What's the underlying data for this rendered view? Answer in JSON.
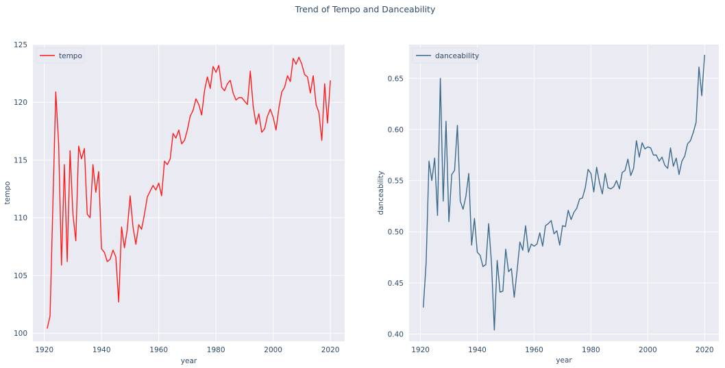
{
  "figure": {
    "title": "Trend of Tempo and Danceability"
  },
  "chart_data": [
    {
      "type": "line",
      "title": "",
      "xlabel": "year",
      "ylabel": "tempo",
      "xlim": [
        1916,
        2025
      ],
      "ylim": [
        99.3,
        125
      ],
      "xticks": [
        1920,
        1940,
        1960,
        1980,
        2000,
        2020
      ],
      "yticks": [
        100,
        105,
        110,
        115,
        120,
        125
      ],
      "grid": true,
      "legend": "top-left",
      "series": [
        {
          "name": "tempo",
          "color": "#ff1a1a",
          "x": [
            1921,
            1922,
            1923,
            1924,
            1925,
            1926,
            1927,
            1928,
            1929,
            1930,
            1931,
            1932,
            1933,
            1934,
            1935,
            1936,
            1937,
            1938,
            1939,
            1940,
            1941,
            1942,
            1943,
            1944,
            1945,
            1946,
            1947,
            1948,
            1949,
            1950,
            1951,
            1952,
            1953,
            1954,
            1955,
            1956,
            1957,
            1958,
            1959,
            1960,
            1961,
            1962,
            1963,
            1964,
            1965,
            1966,
            1967,
            1968,
            1969,
            1970,
            1971,
            1972,
            1973,
            1974,
            1975,
            1976,
            1977,
            1978,
            1979,
            1980,
            1981,
            1982,
            1983,
            1984,
            1985,
            1986,
            1987,
            1988,
            1989,
            1990,
            1991,
            1992,
            1993,
            1994,
            1995,
            1996,
            1997,
            1998,
            1999,
            2000,
            2001,
            2002,
            2003,
            2004,
            2005,
            2006,
            2007,
            2008,
            2009,
            2010,
            2011,
            2012,
            2013,
            2014,
            2015,
            2016,
            2017,
            2018,
            2019,
            2020
          ],
          "y": [
            100.4,
            101.5,
            111.2,
            120.9,
            116.4,
            105.9,
            114.6,
            106.2,
            115.8,
            110.3,
            108.0,
            116.2,
            115.1,
            116.0,
            110.3,
            110.0,
            114.6,
            112.2,
            114.0,
            107.3,
            107.0,
            106.2,
            106.4,
            107.2,
            106.6,
            102.7,
            109.2,
            107.4,
            109.0,
            111.9,
            109.2,
            107.7,
            109.4,
            109.0,
            110.3,
            111.8,
            112.3,
            112.8,
            112.4,
            113.0,
            111.9,
            114.9,
            114.6,
            115.1,
            117.3,
            116.9,
            117.6,
            116.4,
            116.7,
            117.6,
            118.8,
            119.3,
            120.3,
            119.8,
            118.9,
            121.0,
            122.2,
            121.2,
            123.1,
            122.6,
            123.2,
            121.3,
            121.0,
            121.6,
            121.9,
            120.8,
            120.2,
            120.4,
            120.4,
            120.1,
            119.8,
            122.7,
            119.7,
            118.1,
            119.0,
            117.4,
            117.7,
            118.8,
            119.4,
            118.7,
            117.6,
            119.5,
            120.9,
            121.3,
            122.3,
            121.8,
            123.8,
            123.3,
            123.9,
            123.3,
            122.4,
            122.2,
            120.8,
            122.3,
            119.8,
            119.1,
            116.7,
            121.6,
            118.2,
            121.9
          ]
        }
      ]
    },
    {
      "type": "line",
      "title": "",
      "xlabel": "year",
      "ylabel": "danceability",
      "xlim": [
        1916,
        2025
      ],
      "ylim": [
        0.393,
        0.683
      ],
      "xticks": [
        1920,
        1940,
        1960,
        1980,
        2000,
        2020
      ],
      "yticks": [
        0.4,
        0.45,
        0.5,
        0.55,
        0.6,
        0.65
      ],
      "ytick_labels": [
        "0.40",
        "0.45",
        "0.50",
        "0.55",
        "0.60",
        "0.65"
      ],
      "grid": true,
      "legend": "top-left",
      "series": [
        {
          "name": "danceability",
          "color": "#3a6a8a",
          "x": [
            1921,
            1922,
            1923,
            1924,
            1925,
            1926,
            1927,
            1928,
            1929,
            1930,
            1931,
            1932,
            1933,
            1934,
            1935,
            1936,
            1937,
            1938,
            1939,
            1940,
            1941,
            1942,
            1943,
            1944,
            1945,
            1946,
            1947,
            1948,
            1949,
            1950,
            1951,
            1952,
            1953,
            1954,
            1955,
            1956,
            1957,
            1958,
            1959,
            1960,
            1961,
            1962,
            1963,
            1964,
            1965,
            1966,
            1967,
            1968,
            1969,
            1970,
            1971,
            1972,
            1973,
            1974,
            1975,
            1976,
            1977,
            1978,
            1979,
            1980,
            1981,
            1982,
            1983,
            1984,
            1985,
            1986,
            1987,
            1988,
            1989,
            1990,
            1991,
            1992,
            1993,
            1994,
            1995,
            1996,
            1997,
            1998,
            1999,
            2000,
            2001,
            2002,
            2003,
            2004,
            2005,
            2006,
            2007,
            2008,
            2009,
            2010,
            2011,
            2012,
            2013,
            2014,
            2015,
            2016,
            2017,
            2018,
            2019,
            2020
          ],
          "y": [
            0.426,
            0.47,
            0.569,
            0.55,
            0.572,
            0.516,
            0.65,
            0.53,
            0.608,
            0.51,
            0.556,
            0.56,
            0.604,
            0.53,
            0.522,
            0.535,
            0.557,
            0.487,
            0.513,
            0.48,
            0.477,
            0.466,
            0.468,
            0.508,
            0.469,
            0.404,
            0.472,
            0.441,
            0.442,
            0.483,
            0.461,
            0.464,
            0.436,
            0.462,
            0.49,
            0.482,
            0.506,
            0.48,
            0.488,
            0.486,
            0.488,
            0.499,
            0.486,
            0.506,
            0.508,
            0.511,
            0.498,
            0.501,
            0.487,
            0.506,
            0.505,
            0.521,
            0.512,
            0.519,
            0.523,
            0.532,
            0.533,
            0.543,
            0.561,
            0.557,
            0.539,
            0.563,
            0.548,
            0.537,
            0.557,
            0.543,
            0.542,
            0.544,
            0.55,
            0.542,
            0.558,
            0.56,
            0.571,
            0.555,
            0.562,
            0.589,
            0.573,
            0.587,
            0.581,
            0.583,
            0.582,
            0.575,
            0.575,
            0.569,
            0.573,
            0.565,
            0.562,
            0.582,
            0.564,
            0.572,
            0.556,
            0.569,
            0.574,
            0.586,
            0.589,
            0.597,
            0.607,
            0.661,
            0.633,
            0.673
          ]
        }
      ]
    }
  ]
}
